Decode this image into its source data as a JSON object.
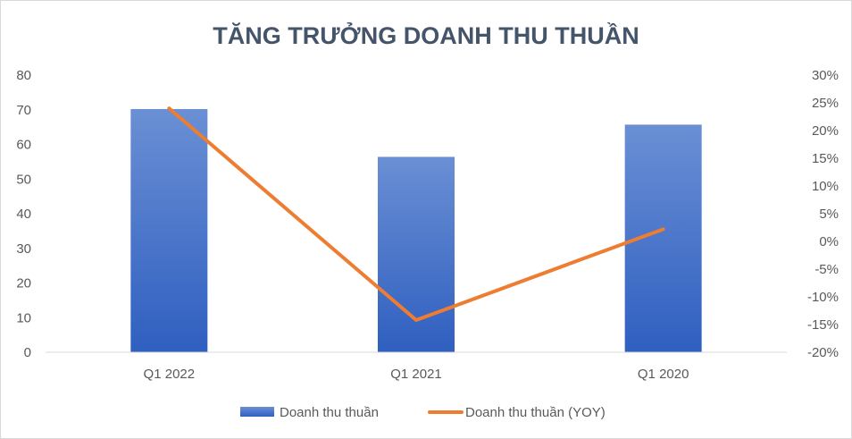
{
  "chart_data": {
    "type": "bar",
    "title": "TĂNG TRƯỞNG DOANH THU THUẦN",
    "categories": [
      "Q1 2022",
      "Q1 2021",
      "Q1 2020"
    ],
    "series": [
      {
        "name": "Doanh thu thuần",
        "type": "bar",
        "axis": "left",
        "values": [
          70.2,
          56.4,
          65.7
        ],
        "color": "#4472c4"
      },
      {
        "name": "Doanh thu thuần (YOY)",
        "type": "line",
        "axis": "right",
        "values": [
          24.0,
          -14.2,
          2.2
        ],
        "unit": "%",
        "color": "#ed7d31"
      }
    ],
    "y_left": {
      "ylim": [
        0,
        80
      ],
      "ticks": [
        "0",
        "10",
        "20",
        "30",
        "40",
        "50",
        "60",
        "70",
        "80"
      ]
    },
    "y_right": {
      "ylim": [
        -20,
        30
      ],
      "ticks": [
        "-20%",
        "-15%",
        "-10%",
        "-5%",
        "0%",
        "5%",
        "10%",
        "15%",
        "20%",
        "25%",
        "30%"
      ]
    },
    "grid": false,
    "legend": "bottom"
  }
}
